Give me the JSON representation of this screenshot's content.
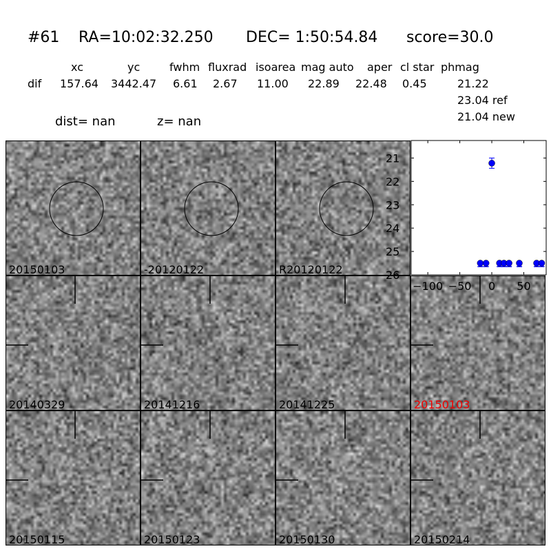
{
  "header": {
    "id": "#61",
    "ra": "RA=10:02:32.250",
    "dec": "DEC= 1:50:54.84",
    "score": "score=30.0",
    "columns": [
      "xc",
      "yc",
      "fwhm",
      "fluxrad",
      "isoarea",
      "mag auto",
      "aper",
      "cl star",
      "phmag"
    ],
    "row_label": "dif",
    "values": [
      "157.64",
      "3442.47",
      "6.61",
      "2.67",
      "11.00",
      "22.89",
      "22.48",
      "0.45",
      "21.22"
    ],
    "ref": "23.04 ref",
    "new": "21.04 new",
    "dist": "dist=   nan",
    "z": "z=   nan"
  },
  "stamps": [
    {
      "label": "20150103",
      "marker": "circle"
    },
    {
      "label": "-20120122",
      "marker": "circle"
    },
    {
      "label": "R20120122",
      "marker": "circle"
    },
    {
      "label": "20140329",
      "marker": "ticks"
    },
    {
      "label": "20141216",
      "marker": "ticks"
    },
    {
      "label": "20141225",
      "marker": "ticks"
    },
    {
      "label": "20150103",
      "marker": "ticks",
      "highlight": "#ee0000"
    },
    {
      "label": "20150115",
      "marker": "ticks"
    },
    {
      "label": "20150123",
      "marker": "ticks"
    },
    {
      "label": "20150130",
      "marker": "ticks"
    },
    {
      "label": "20150214",
      "marker": "ticks"
    }
  ],
  "chart_data": {
    "type": "scatter",
    "xlim": [
      -126,
      85
    ],
    "ylim": [
      26,
      20.25
    ],
    "y_inverted": true,
    "xticks": [
      -100,
      -50,
      0,
      50
    ],
    "yticks": [
      21,
      22,
      23,
      24,
      25,
      26
    ],
    "color": "#0000ff",
    "detections": [
      {
        "x": 0,
        "y": 21.22,
        "err": 0.22
      }
    ],
    "upper_limits": [
      {
        "x": -18,
        "y": 25.5
      },
      {
        "x": -9,
        "y": 25.5
      },
      {
        "x": 12,
        "y": 25.5
      },
      {
        "x": 19,
        "y": 25.5
      },
      {
        "x": 27,
        "y": 25.5
      },
      {
        "x": 43,
        "y": 25.5
      },
      {
        "x": 70,
        "y": 25.5
      },
      {
        "x": 78,
        "y": 25.5
      }
    ]
  }
}
